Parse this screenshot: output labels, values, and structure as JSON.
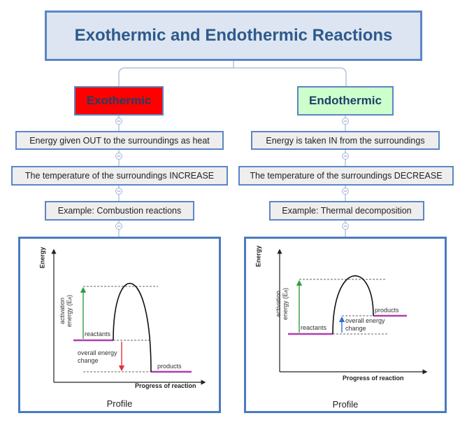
{
  "title": "Exothermic and Endothermic Reactions",
  "exothermic": {
    "label": "Exothermic",
    "color": "#ff0000",
    "nodes": [
      "Energy given OUT to the surroundings as heat",
      "The temperature of the surroundings INCREASE",
      "Example: Combustion reactions"
    ],
    "diagram": {
      "y_axis": "Energy",
      "x_axis": "Progress of reaction",
      "activation_line1": "activation",
      "activation_line2": "energy (E",
      "activation_sub": "a",
      "activation_close": ")",
      "reactants": "reactants",
      "products": "products",
      "overall_line1": "overall energy",
      "overall_line2": "change",
      "caption": "Profile"
    }
  },
  "endothermic": {
    "label": "Endothermic",
    "color": "#ccffcc",
    "nodes": [
      "Energy is taken IN from the surroundings",
      "The temperature of the surroundings DECREASE",
      "Example: Thermal decomposition"
    ],
    "diagram": {
      "y_axis": "Energy",
      "x_axis": "Progress of reaction",
      "activation_line1": "activation",
      "activation_line2": "energy (E",
      "activation_sub": "a",
      "activation_close": ")",
      "reactants": "reactants",
      "products": "products",
      "overall_line1": "overall energy",
      "overall_line2": "change",
      "caption": "Profile"
    }
  },
  "colors": {
    "border": "#5b86c4",
    "connector": "#9fb6d8",
    "energy_level": "#b03db0",
    "activation_arrow": "#2e9e3e",
    "exo_change_arrow": "#e0303a",
    "endo_change_arrow": "#2e6fd0"
  }
}
